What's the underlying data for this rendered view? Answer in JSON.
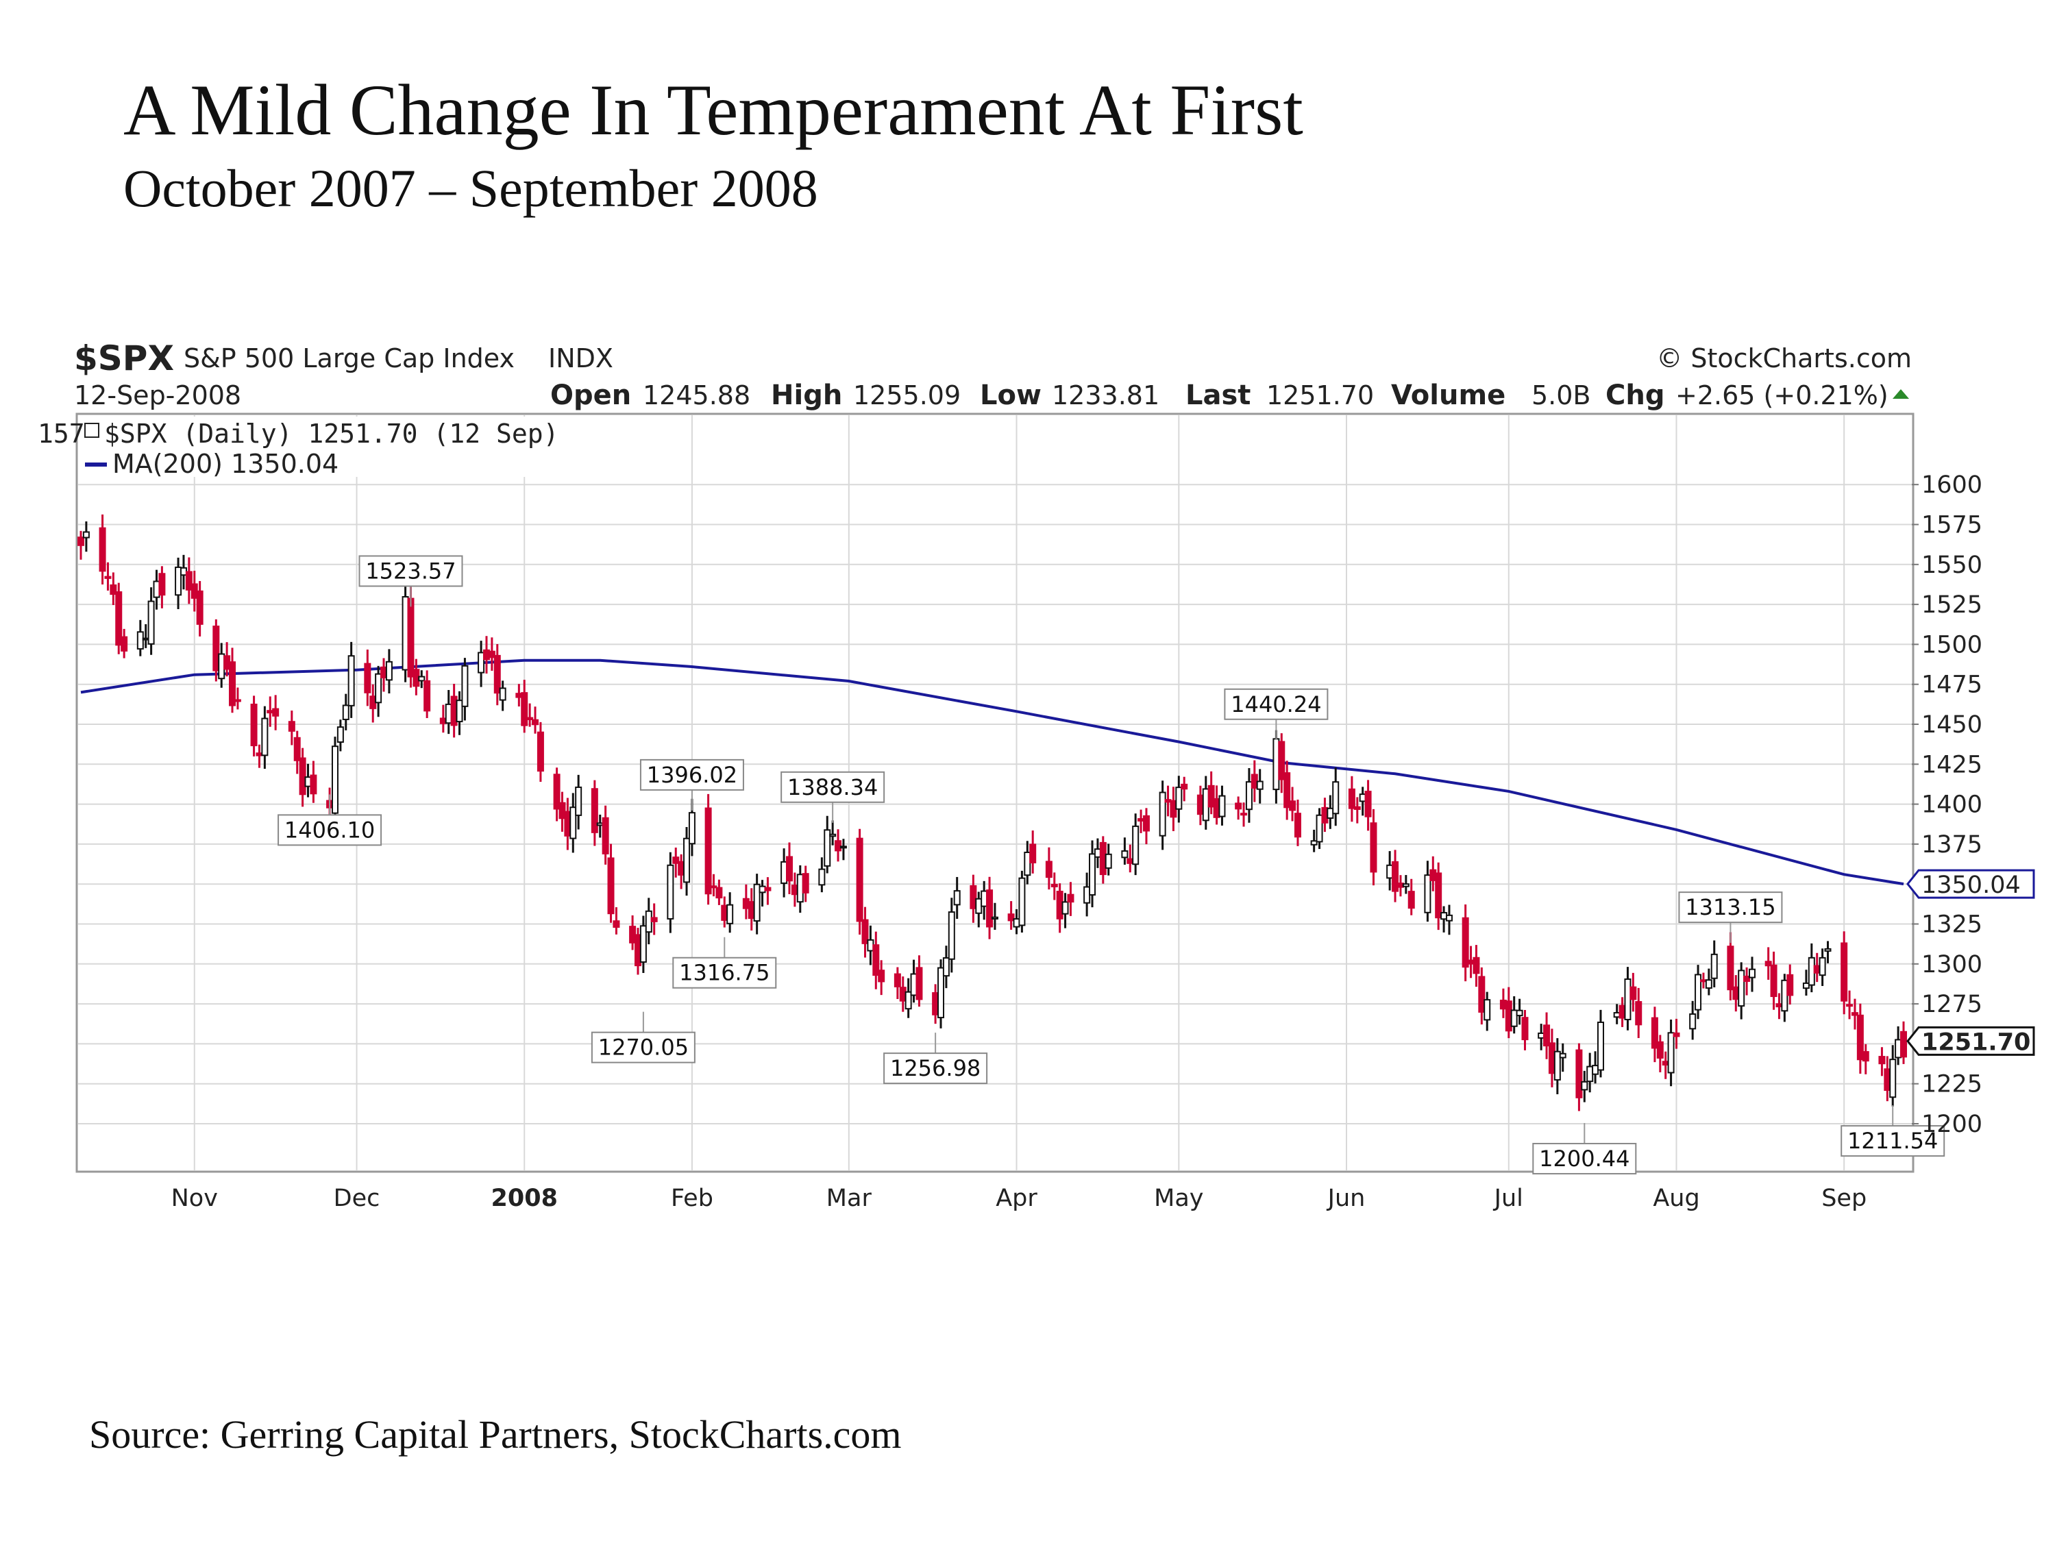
{
  "title": "A Mild Change In Temperament At First",
  "subtitle": "October 2007 – September 2008",
  "source": "Source: Gerring Capital Partners, StockCharts.com",
  "header": {
    "symbol": "$SPX",
    "name": "S&P 500 Large Cap Index",
    "exchange": "INDX",
    "date": "12-Sep-2008",
    "watermark": "© StockCharts.com",
    "open_label": "Open",
    "open": "1245.88",
    "high_label": "High",
    "high": "1255.09",
    "low_label": "Low",
    "low": "1233.81",
    "last_label": "Last",
    "last": "1251.70",
    "volume_label": "Volume",
    "volume": "5.0B",
    "chg_label": "Chg",
    "chg": "+2.65 (+0.21%)",
    "legend_price": "$SPX (Daily) 1251.70 (12 Sep)",
    "legend_ma": "MA(200) 1350.04",
    "left_cut": "157"
  },
  "colors": {
    "down": "#cc0033",
    "up": "#111111",
    "ma": "#1a1a99",
    "grid": "#d8d8d8"
  },
  "chart_data": {
    "type": "candlestick",
    "ylim": [
      1185,
      1612
    ],
    "yticks": [
      1200,
      1225,
      1250,
      1275,
      1300,
      1325,
      1350,
      1375,
      1400,
      1425,
      1450,
      1475,
      1500,
      1525,
      1550,
      1575,
      1600
    ],
    "ytick_labels": [
      "1200",
      "1225",
      "",
      "1275",
      "1300",
      "1325",
      "",
      "1375",
      "1400",
      "1425",
      "1450",
      "1475",
      "1500",
      "1525",
      "1550",
      "1575",
      "1600"
    ],
    "x_start": "2007-10-11",
    "x_end": "2008-09-12",
    "month_ticks": [
      {
        "date": "2007-11-01",
        "label": "Nov",
        "bold": false
      },
      {
        "date": "2007-12-01",
        "label": "Dec",
        "bold": false
      },
      {
        "date": "2008-01-01",
        "label": "2008",
        "bold": true
      },
      {
        "date": "2008-02-01",
        "label": "Feb",
        "bold": false
      },
      {
        "date": "2008-03-01",
        "label": "Mar",
        "bold": false
      },
      {
        "date": "2008-04-01",
        "label": "Apr",
        "bold": false
      },
      {
        "date": "2008-05-01",
        "label": "May",
        "bold": false
      },
      {
        "date": "2008-06-01",
        "label": "Jun",
        "bold": false
      },
      {
        "date": "2008-07-01",
        "label": "Jul",
        "bold": false
      },
      {
        "date": "2008-08-01",
        "label": "Aug",
        "bold": false
      },
      {
        "date": "2008-09-01",
        "label": "Sep",
        "bold": false
      }
    ],
    "close_path": [
      [
        "2007-10-11",
        1562
      ],
      [
        "2007-10-15",
        1548
      ],
      [
        "2007-10-19",
        1500
      ],
      [
        "2007-10-22",
        1506
      ],
      [
        "2007-10-26",
        1535
      ],
      [
        "2007-10-31",
        1549
      ],
      [
        "2007-11-02",
        1510
      ],
      [
        "2007-11-07",
        1476
      ],
      [
        "2007-11-12",
        1440
      ],
      [
        "2007-11-16",
        1458
      ],
      [
        "2007-11-21",
        1416
      ],
      [
        "2007-11-26",
        1408
      ],
      [
        "2007-11-30",
        1481
      ],
      [
        "2007-12-04",
        1471
      ],
      [
        "2007-12-10",
        1516
      ],
      [
        "2007-12-11",
        1478
      ],
      [
        "2007-12-14",
        1468
      ],
      [
        "2007-12-19",
        1455
      ],
      [
        "2007-12-24",
        1497
      ],
      [
        "2007-12-28",
        1478
      ],
      [
        "2008-01-02",
        1447
      ],
      [
        "2008-01-08",
        1390
      ],
      [
        "2008-01-11",
        1401
      ],
      [
        "2008-01-15",
        1380
      ],
      [
        "2008-01-18",
        1325
      ],
      [
        "2008-01-22",
        1310
      ],
      [
        "2008-01-25",
        1330
      ],
      [
        "2008-01-31",
        1378
      ],
      [
        "2008-02-01",
        1395
      ],
      [
        "2008-02-05",
        1336
      ],
      [
        "2008-02-08",
        1331
      ],
      [
        "2008-02-14",
        1348
      ],
      [
        "2008-02-19",
        1350
      ],
      [
        "2008-02-22",
        1353
      ],
      [
        "2008-02-27",
        1380
      ],
      [
        "2008-03-03",
        1331
      ],
      [
        "2008-03-07",
        1293
      ],
      [
        "2008-03-10",
        1273
      ],
      [
        "2008-03-14",
        1288
      ],
      [
        "2008-03-17",
        1276
      ],
      [
        "2008-03-20",
        1330
      ],
      [
        "2008-03-26",
        1341
      ],
      [
        "2008-03-31",
        1322
      ],
      [
        "2008-04-04",
        1370
      ],
      [
        "2008-04-11",
        1332
      ],
      [
        "2008-04-16",
        1365
      ],
      [
        "2008-04-22",
        1375
      ],
      [
        "2008-04-28",
        1397
      ],
      [
        "2008-05-02",
        1413
      ],
      [
        "2008-05-07",
        1393
      ],
      [
        "2008-05-12",
        1403
      ],
      [
        "2008-05-19",
        1426
      ],
      [
        "2008-05-22",
        1391
      ],
      [
        "2008-05-27",
        1385
      ],
      [
        "2008-05-30",
        1400
      ],
      [
        "2008-06-05",
        1404
      ],
      [
        "2008-06-06",
        1361
      ],
      [
        "2008-06-12",
        1340
      ],
      [
        "2008-06-16",
        1361
      ],
      [
        "2008-06-20",
        1318
      ],
      [
        "2008-06-26",
        1284
      ],
      [
        "2008-07-02",
        1262
      ],
      [
        "2008-07-07",
        1253
      ],
      [
        "2008-07-11",
        1240
      ],
      [
        "2008-07-15",
        1214
      ],
      [
        "2008-07-18",
        1261
      ],
      [
        "2008-07-23",
        1283
      ],
      [
        "2008-07-28",
        1235
      ],
      [
        "2008-08-01",
        1261
      ],
      [
        "2008-08-08",
        1296
      ],
      [
        "2008-08-12",
        1289
      ],
      [
        "2008-08-15",
        1298
      ],
      [
        "2008-08-20",
        1275
      ],
      [
        "2008-08-22",
        1292
      ],
      [
        "2008-08-28",
        1300
      ],
      [
        "2008-09-02",
        1277
      ],
      [
        "2008-09-05",
        1242
      ],
      [
        "2008-09-09",
        1224
      ],
      [
        "2008-09-12",
        1251.7
      ]
    ],
    "ma200": [
      [
        "2007-10-11",
        1470
      ],
      [
        "2007-11-01",
        1481
      ],
      [
        "2007-12-01",
        1484
      ],
      [
        "2008-01-01",
        1490
      ],
      [
        "2008-01-15",
        1490
      ],
      [
        "2008-02-01",
        1486
      ],
      [
        "2008-03-01",
        1477
      ],
      [
        "2008-04-01",
        1458
      ],
      [
        "2008-05-01",
        1439
      ],
      [
        "2008-05-20",
        1426
      ],
      [
        "2008-06-10",
        1419
      ],
      [
        "2008-07-01",
        1408
      ],
      [
        "2008-08-01",
        1384
      ],
      [
        "2008-09-01",
        1356
      ],
      [
        "2008-09-12",
        1350.04
      ]
    ],
    "callouts": [
      {
        "date": "2007-11-26",
        "value": 1406.1,
        "label": "1406.10",
        "pos": "below"
      },
      {
        "date": "2007-12-11",
        "value": 1523.57,
        "label": "1523.57",
        "pos": "above"
      },
      {
        "date": "2008-01-23",
        "value": 1270.05,
        "label": "1270.05",
        "pos": "below"
      },
      {
        "date": "2008-02-01",
        "value": 1396.02,
        "label": "1396.02",
        "pos": "above"
      },
      {
        "date": "2008-02-07",
        "value": 1316.75,
        "label": "1316.75",
        "pos": "below"
      },
      {
        "date": "2008-02-27",
        "value": 1388.34,
        "label": "1388.34",
        "pos": "above"
      },
      {
        "date": "2008-03-17",
        "value": 1256.98,
        "label": "1256.98",
        "pos": "below"
      },
      {
        "date": "2008-05-19",
        "value": 1440.24,
        "label": "1440.24",
        "pos": "above"
      },
      {
        "date": "2008-07-15",
        "value": 1200.44,
        "label": "1200.44",
        "pos": "below"
      },
      {
        "date": "2008-08-11",
        "value": 1313.15,
        "label": "1313.15",
        "pos": "above"
      },
      {
        "date": "2008-09-10",
        "value": 1211.54,
        "label": "1211.54",
        "pos": "below"
      }
    ],
    "last_value": 1251.7,
    "last_label": "1251.70",
    "ma_last_label": "1350.04"
  }
}
